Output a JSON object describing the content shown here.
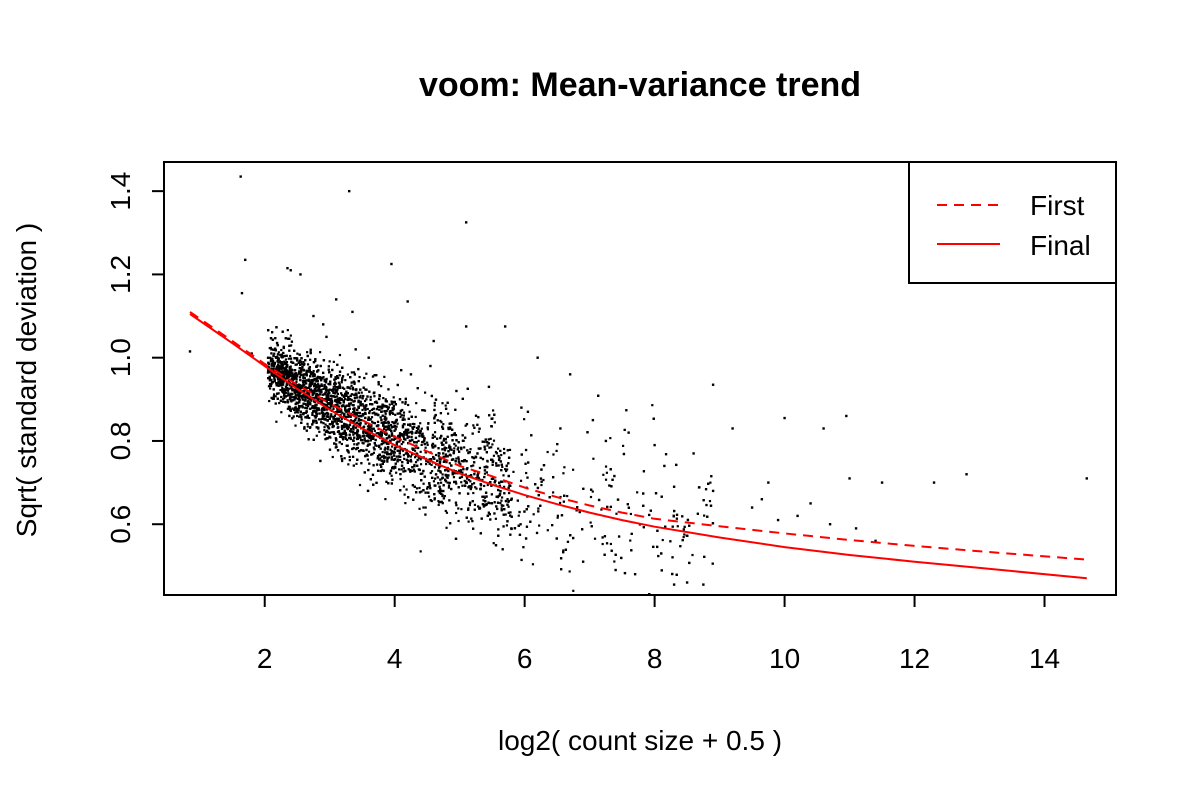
{
  "chart_data": {
    "type": "scatter",
    "title": "voom: Mean-variance trend",
    "xlabel": "log2( count size + 0.5 )",
    "ylabel": "Sqrt( standard deviation )",
    "xlim": [
      0.45,
      15.1
    ],
    "ylim": [
      0.43,
      1.47
    ],
    "x_ticks": [
      2,
      4,
      6,
      8,
      10,
      12,
      14
    ],
    "y_ticks": [
      0.6,
      0.8,
      1.0,
      1.2,
      1.4
    ],
    "x_tick_labels": [
      "2",
      "4",
      "6",
      "8",
      "10",
      "12",
      "14"
    ],
    "y_tick_labels": [
      "0.6",
      "0.8",
      "1.0",
      "1.2",
      "1.4"
    ],
    "grid": false,
    "legend": {
      "position": "top-right",
      "entries": [
        {
          "label": "First",
          "style": "dashed",
          "color": "#ff0000"
        },
        {
          "label": "Final",
          "style": "solid",
          "color": "#ff0000"
        }
      ]
    },
    "series": [
      {
        "name": "First",
        "kind": "line",
        "style": "dashed",
        "color": "#ff0000",
        "x": [
          0.85,
          1.5,
          2.0,
          2.5,
          3.0,
          3.5,
          4.0,
          4.5,
          5.0,
          5.5,
          6.0,
          6.5,
          7.0,
          7.5,
          8.0,
          9.0,
          10.0,
          11.0,
          12.0,
          13.0,
          14.65
        ],
        "y": [
          1.11,
          1.04,
          0.985,
          0.935,
          0.89,
          0.85,
          0.81,
          0.775,
          0.74,
          0.715,
          0.688,
          0.665,
          0.645,
          0.628,
          0.613,
          0.595,
          0.578,
          0.562,
          0.548,
          0.535,
          0.515
        ]
      },
      {
        "name": "Final",
        "kind": "line",
        "style": "solid",
        "color": "#ff0000",
        "x": [
          0.85,
          1.5,
          2.0,
          2.5,
          3.0,
          3.5,
          4.0,
          4.5,
          5.0,
          5.5,
          6.0,
          6.5,
          7.0,
          7.5,
          8.0,
          9.0,
          10.0,
          11.0,
          12.0,
          13.0,
          14.65
        ],
        "y": [
          1.105,
          1.035,
          0.98,
          0.925,
          0.875,
          0.83,
          0.79,
          0.755,
          0.722,
          0.695,
          0.67,
          0.648,
          0.628,
          0.61,
          0.594,
          0.568,
          0.545,
          0.526,
          0.51,
          0.495,
          0.47
        ]
      },
      {
        "name": "",
        "kind": "points",
        "color": "#000000",
        "x": [
          1.63,
          3.3,
          5.1,
          1.7,
          2.35,
          2.4,
          2.55,
          3.95,
          4.2,
          3.1,
          3.35,
          2.75,
          2.9,
          4.6,
          5.1,
          5.7,
          6.2,
          6.7,
          8.9,
          9.2,
          10.0,
          10.95,
          10.6,
          11.0,
          11.5,
          12.3,
          12.8,
          14.65,
          8.3,
          8.5,
          8.75,
          7.7,
          7.4,
          6.9,
          9.9,
          10.4,
          11.4,
          9.65,
          9.75,
          8.15,
          8.3,
          7.25,
          6.55,
          5.95,
          4.95,
          4.55,
          0.85,
          1.65,
          1.8,
          2.8,
          2.2,
          2.95,
          3.4,
          3.6,
          4.1,
          4.25,
          5.45,
          6.05,
          7.05,
          7.6,
          8.0,
          8.6,
          8.9,
          9.5,
          10.2,
          10.7,
          11.1
        ],
        "y": [
          1.435,
          1.4,
          1.325,
          1.235,
          1.215,
          1.21,
          1.2,
          1.225,
          1.135,
          1.14,
          1.11,
          1.1,
          1.08,
          1.04,
          1.075,
          1.075,
          1.0,
          0.96,
          0.935,
          0.83,
          0.855,
          0.86,
          0.83,
          0.71,
          0.7,
          0.7,
          0.72,
          0.71,
          0.455,
          0.46,
          0.455,
          0.48,
          0.49,
          0.51,
          0.61,
          0.65,
          0.56,
          0.66,
          0.7,
          0.74,
          0.69,
          0.8,
          0.83,
          0.88,
          0.92,
          0.98,
          1.015,
          1.155,
          1.01,
          0.95,
          1.03,
          1.05,
          1.02,
          1.0,
          0.97,
          0.96,
          0.93,
          0.87,
          0.85,
          0.82,
          0.79,
          0.77,
          0.68,
          0.64,
          0.62,
          0.6,
          0.59
        ]
      }
    ]
  }
}
